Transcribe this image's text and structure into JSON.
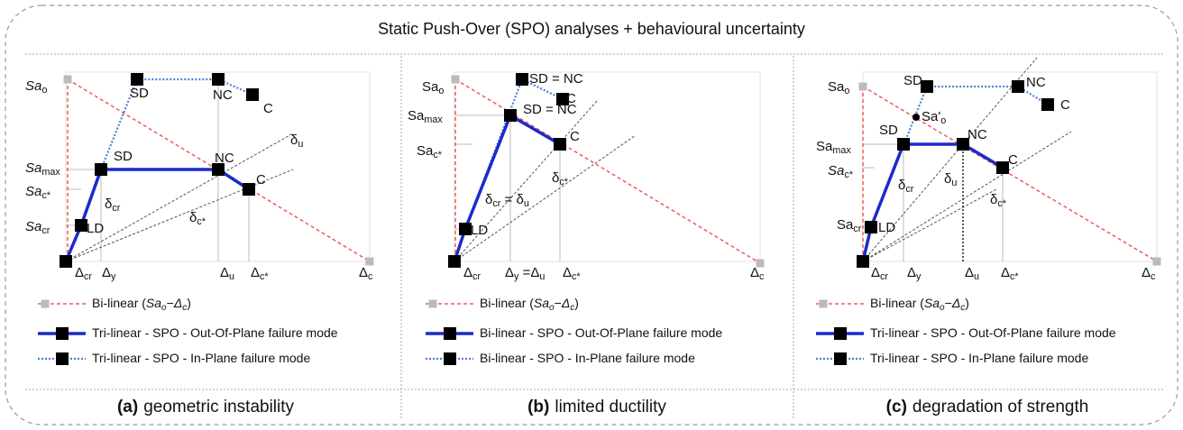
{
  "title": "Static Push-Over (SPO) analyses + behavioural uncertainty",
  "panels": [
    {
      "labels": [
        [
          {
            "i": "Sa"
          },
          {
            "sub": "o"
          }
        ],
        [
          "SD"
        ],
        [
          "NC"
        ],
        [
          "C"
        ],
        [
          {
            "i": "Sa"
          },
          {
            "sub": "max"
          }
        ],
        [
          "SD"
        ],
        [
          "NC"
        ],
        [
          "C"
        ],
        [
          {
            "i": "Sa"
          },
          {
            "sub": "c*"
          }
        ],
        [
          "δ",
          {
            "sub": "cr"
          }
        ],
        [
          "δ",
          {
            "sub": "c*"
          }
        ],
        [
          "δ",
          {
            "sub": "u"
          }
        ],
        [
          {
            "i": "Sa"
          },
          {
            "sub": "cr"
          }
        ],
        [
          "LD"
        ]
      ],
      "x_labels": [
        [
          "Δ",
          {
            "sub": "cr"
          }
        ],
        [
          "Δ",
          {
            "sub": "y"
          }
        ],
        [
          "Δ",
          {
            "sub": "u"
          }
        ],
        [
          "Δ",
          {
            "sub": "c*"
          }
        ],
        [
          "Δ",
          {
            "sub": "c"
          }
        ]
      ],
      "legend": [
        [
          "Bi-linear (",
          {
            "i": "Sa"
          },
          {
            "isub": "o"
          },
          "−",
          {
            "i": "Δ"
          },
          {
            "isub": "c"
          },
          ")"
        ],
        [
          "Tri-linear - SPO - Out-Of-Plane failure mode"
        ],
        [
          "Tri-linear - SPO - In-Plane failure mode"
        ]
      ],
      "caption": {
        "letter": "(a)",
        "text": "geometric instability"
      }
    },
    {
      "labels": [
        [
          "Sa",
          {
            "sub": "o"
          }
        ],
        [
          "SD = NC"
        ],
        [
          "C"
        ],
        [
          "Sa",
          {
            "sub": "max"
          }
        ],
        [
          "SD = NC"
        ],
        [
          "C"
        ],
        [
          "Sa",
          {
            "sub": "c*"
          }
        ],
        [
          "δ",
          {
            "sub": "c*"
          }
        ],
        [
          "δ",
          {
            "sub": "cr"
          },
          " = δ",
          {
            "sub": "u"
          }
        ],
        [
          "LD"
        ]
      ],
      "x_labels": [
        [
          "Δ",
          {
            "sub": "cr"
          }
        ],
        [
          "Δ",
          {
            "sub": "y"
          },
          " =Δ",
          {
            "sub": "u"
          }
        ],
        [
          "Δ",
          {
            "sub": "c*"
          }
        ],
        [
          "Δ",
          {
            "sub": "c"
          }
        ]
      ],
      "legend": [
        [
          "Bi-linear (",
          {
            "i": "Sa"
          },
          {
            "isub": "o"
          },
          "−",
          {
            "i": "Δ"
          },
          {
            "isub": "c"
          },
          ")"
        ],
        [
          "Bi-linear - SPO - Out-Of-Plane failure mode"
        ],
        [
          "Bi-linear - SPO - In-Plane failure mode"
        ]
      ],
      "caption": {
        "letter": "(b)",
        "text": "limited ductility"
      }
    },
    {
      "labels": [
        [
          "Sa",
          {
            "sub": "o"
          }
        ],
        [
          "SD"
        ],
        [
          "NC"
        ],
        [
          "C"
        ],
        [
          "Sa'",
          {
            "sub": "o"
          }
        ],
        [
          "SD"
        ],
        [
          "NC"
        ],
        [
          "C"
        ],
        [
          "Sa",
          {
            "sub": "max"
          }
        ],
        [
          {
            "i": "Sa"
          },
          {
            "sub": "c*"
          }
        ],
        [
          "δ",
          {
            "sub": "cr"
          }
        ],
        [
          "δ",
          {
            "sub": "u"
          }
        ],
        [
          "δ",
          {
            "sub": "c*"
          }
        ],
        [
          "Sa",
          {
            "sub": "cr"
          }
        ],
        [
          "LD"
        ]
      ],
      "x_labels": [
        [
          "Δ",
          {
            "sub": "cr"
          }
        ],
        [
          "Δ",
          {
            "sub": "y"
          }
        ],
        [
          "Δ",
          {
            "sub": "u"
          }
        ],
        [
          "Δ",
          {
            "sub": "c*"
          }
        ],
        [
          "Δ",
          {
            "sub": "c"
          }
        ]
      ],
      "legend": [
        [
          "Bi-linear (",
          {
            "i": "Sa"
          },
          {
            "isub": "o"
          },
          "−",
          {
            "i": "Δ"
          },
          {
            "isub": "c"
          },
          ")"
        ],
        [
          "Tri-linear - SPO - Out-Of-Plane failure mode"
        ],
        [
          "Tri-linear - SPO - In-Plane failure mode"
        ]
      ],
      "caption": {
        "letter": "(c)",
        "text": "degradation of strength"
      }
    }
  ]
}
